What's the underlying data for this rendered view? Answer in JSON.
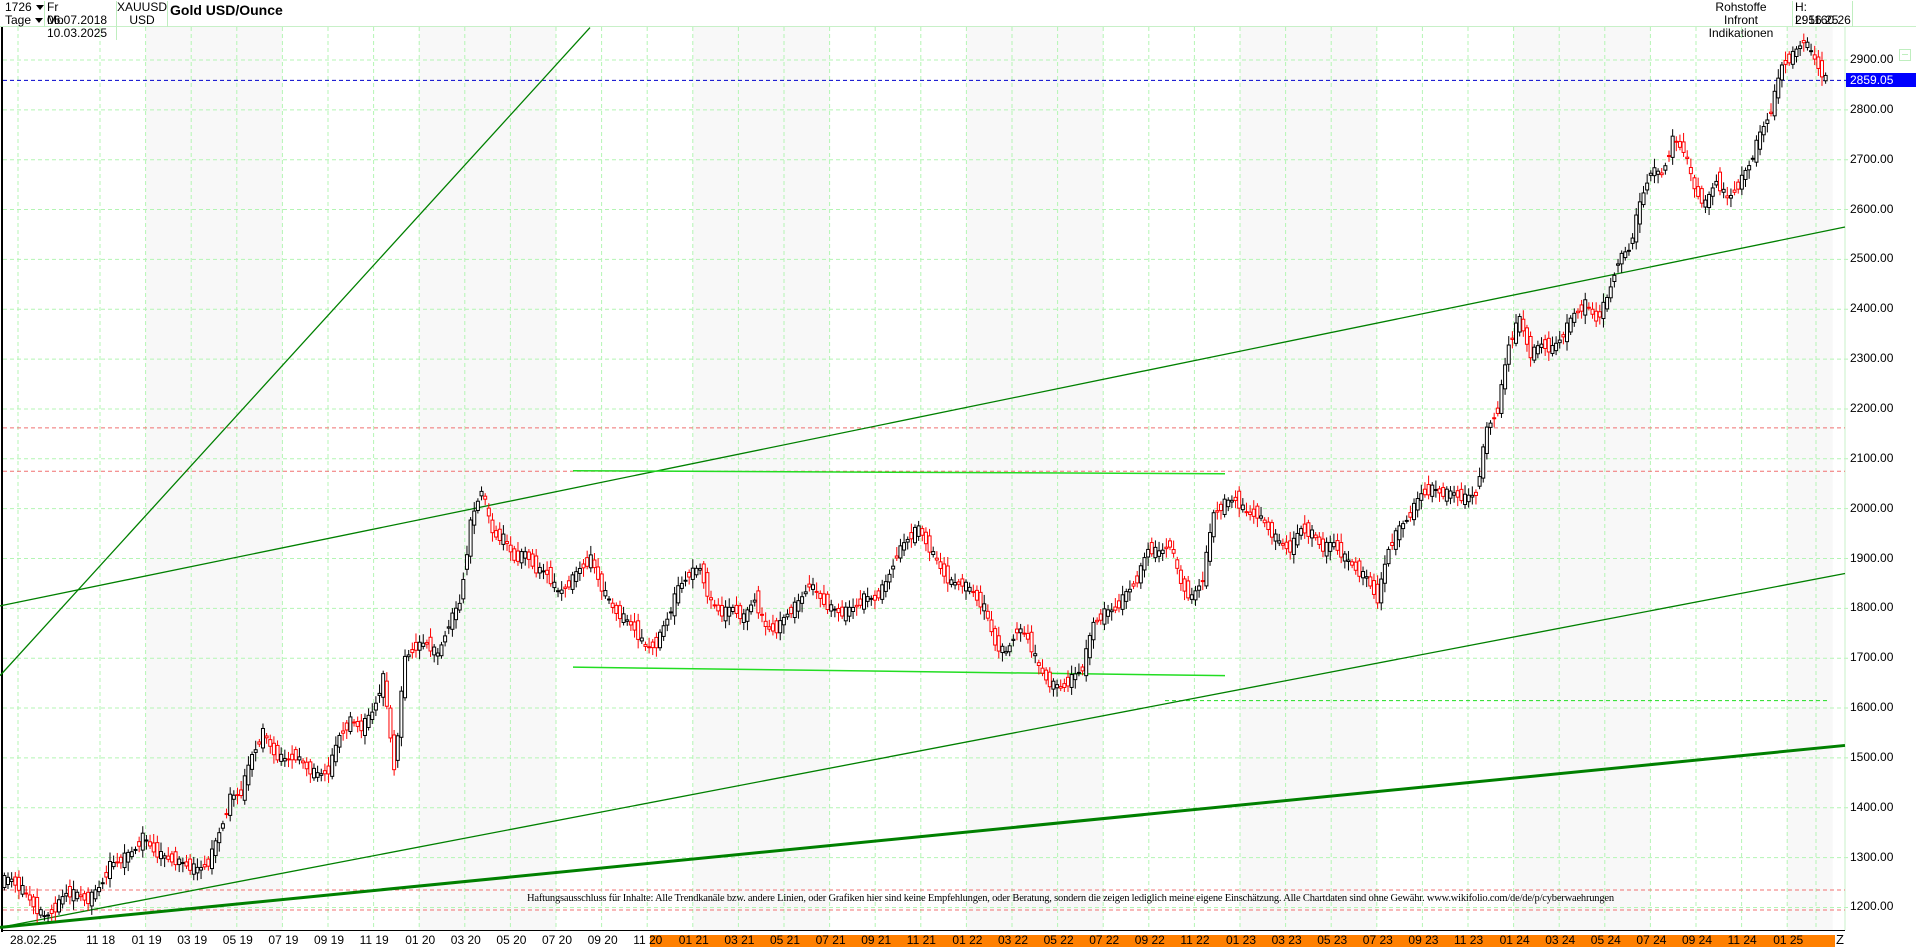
{
  "header": {
    "bar_count": "1726",
    "interval": "Tage",
    "start_date": "Fr 06.07.2018",
    "end_date": "Mo 10.03.2025",
    "symbol": "XAUUSD",
    "currency": "USD",
    "title": "Gold USD/Ounce",
    "category": "Rohstoffe",
    "source": "Infront Indikationen",
    "high": "H: 2956.25",
    "low": "L: 1160.26"
  },
  "current_price_label": "2859.05",
  "disclaimer": "Haftungsausschluss für Inhalte: Alle Trendkanäle bzw. andere Linien, oder Grafiken hier sind keine Empfehlungen, oder Beratung, sondern die zeigen lediglich meine eigene Einschätzung. Alle Chartdaten sind ohne Gewähr.  www.wikifolio.com/de/de/p/cyberwaehrungen",
  "z_label": "Z",
  "colors": {
    "grid": "#b4f5b4",
    "up": "#000000",
    "down": "#ff0000",
    "trend": "#008000",
    "trend_light": "#22dd22",
    "current": "#0000cc",
    "resistance": "#f07070",
    "shade": "#f8f8f8",
    "orange": "#ff8000"
  },
  "chart_data": {
    "type": "candlestick",
    "title": "Gold USD/Ounce",
    "symbol": "XAUUSD",
    "interval": "daily",
    "ylim": [
      1160,
      2960
    ],
    "y_ticks": [
      1200,
      1300,
      1400,
      1500,
      1600,
      1700,
      1800,
      1900,
      2000,
      2100,
      2200,
      2300,
      2400,
      2500,
      2600,
      2700,
      2800,
      2900
    ],
    "x_ticks": [
      "28.02.25",
      "11 18",
      "01 19",
      "03 19",
      "05 19",
      "07 19",
      "09 19",
      "11 19",
      "01 20",
      "03 20",
      "05 20",
      "07 20",
      "09 20",
      "11 20",
      "01 21",
      "03 21",
      "05 21",
      "07 21",
      "09 21",
      "11 21",
      "01 22",
      "03 22",
      "05 22",
      "07 22",
      "09 22",
      "11 22",
      "01 23",
      "03 23",
      "05 23",
      "07 23",
      "09 23",
      "11 23",
      "01 24",
      "03 24",
      "05 24",
      "07 24",
      "09 24",
      "11 24",
      "01 25"
    ],
    "high": 2956.25,
    "low": 1160.26,
    "last": 2859.05,
    "closes_biweekly": [
      1255,
      1235,
      1205,
      1180,
      1200,
      1230,
      1225,
      1215,
      1240,
      1285,
      1295,
      1310,
      1340,
      1315,
      1300,
      1295,
      1285,
      1275,
      1290,
      1350,
      1420,
      1430,
      1505,
      1550,
      1510,
      1495,
      1505,
      1480,
      1465,
      1475,
      1545,
      1575,
      1560,
      1590,
      1660,
      1480,
      1700,
      1725,
      1730,
      1705,
      1770,
      1810,
      1970,
      2040,
      1950,
      1940,
      1900,
      1910,
      1880,
      1870,
      1830,
      1850,
      1880,
      1900,
      1840,
      1800,
      1780,
      1760,
      1720,
      1730,
      1780,
      1840,
      1870,
      1880,
      1810,
      1790,
      1800,
      1780,
      1820,
      1760,
      1760,
      1790,
      1810,
      1850,
      1820,
      1800,
      1790,
      1800,
      1820,
      1820,
      1850,
      1910,
      1940,
      1960,
      1920,
      1880,
      1850,
      1850,
      1830,
      1800,
      1730,
      1710,
      1760,
      1740,
      1680,
      1650,
      1640,
      1660,
      1680,
      1770,
      1790,
      1800,
      1830,
      1860,
      1920,
      1910,
      1930,
      1850,
      1820,
      1860,
      1990,
      2010,
      2020,
      1990,
      1990,
      1960,
      1930,
      1920,
      1960,
      1950,
      1920,
      1930,
      1900,
      1880,
      1860,
      1820,
      1920,
      1960,
      1990,
      2030,
      2040,
      2030,
      2030,
      2020,
      2030,
      2160,
      2200,
      2330,
      2380,
      2310,
      2330,
      2320,
      2350,
      2390,
      2410,
      2380,
      2420,
      2500,
      2520,
      2610,
      2680,
      2670,
      2740,
      2720,
      2640,
      2610,
      2660,
      2620,
      2650,
      2690,
      2750,
      2800,
      2890,
      2910,
      2940,
      2900,
      2860
    ],
    "trendlines": [
      {
        "name": "upper-channel-top",
        "from": [
          0,
          1665
        ],
        "to": [
          2020.6,
          2965
        ]
      },
      {
        "name": "main-channel-top",
        "from": [
          0,
          1805
        ],
        "to": [
          2025.2,
          2565
        ]
      },
      {
        "name": "main-channel-bottom",
        "from": [
          0,
          1160
        ],
        "to": [
          2025.2,
          1870
        ]
      },
      {
        "name": "long-term-support",
        "from": [
          0,
          1160
        ],
        "to": [
          2025.2,
          1525
        ]
      },
      {
        "name": "2020-top-horizontal",
        "level": 2075,
        "color": "light-green"
      },
      {
        "name": "2020-2022-bottom-horizontal",
        "level": 1680,
        "color": "light-green"
      }
    ],
    "horizontal_levels": [
      {
        "level": 2859.05,
        "style": "blue-dashed",
        "label": "current"
      },
      {
        "level": 2162,
        "style": "red-dashed"
      },
      {
        "level": 2075,
        "style": "red-dashed"
      },
      {
        "level": 1615,
        "style": "green-dashed"
      },
      {
        "level": 1235,
        "style": "red-dashed"
      },
      {
        "level": 1195,
        "style": "red-dashed"
      }
    ]
  }
}
